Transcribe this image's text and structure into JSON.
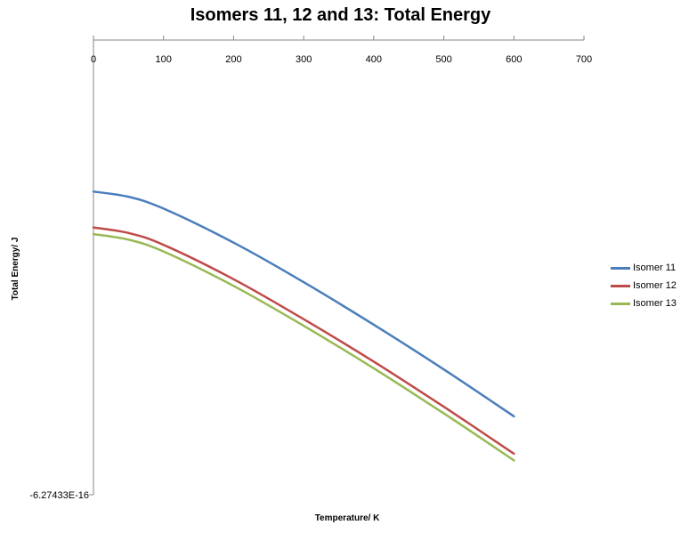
{
  "chart_data": {
    "type": "line",
    "title": "Isomers 11, 12 and 13: Total Energy",
    "xlabel": "Temperature/ K",
    "ylabel": "Total Energy/ J",
    "xlim": [
      0,
      700
    ],
    "x_ticks": [
      0,
      100,
      200,
      300,
      400,
      500,
      600,
      700
    ],
    "y_tick_label": "-6.27433E-16",
    "x_axis_position": "top",
    "grid": false,
    "legend_position": "right",
    "series": [
      {
        "name": "Isomer 11",
        "color": "#4a7ebb",
        "x": [
          0,
          50,
          100,
          200,
          300,
          400,
          500,
          600
        ],
        "y": [
          0.3,
          0.286,
          0.254,
          0.162,
          0.055,
          -0.06,
          -0.181,
          -0.308
        ]
      },
      {
        "name": "Isomer 12",
        "color": "#be4b48",
        "x": [
          0,
          50,
          100,
          200,
          300,
          400,
          500,
          600
        ],
        "y": [
          0.203,
          0.188,
          0.156,
          0.063,
          -0.045,
          -0.16,
          -0.282,
          -0.409
        ]
      },
      {
        "name": "Isomer 13",
        "color": "#98b954",
        "x": [
          0,
          50,
          100,
          200,
          300,
          400,
          500,
          600
        ],
        "y": [
          0.185,
          0.17,
          0.138,
          0.045,
          -0.063,
          -0.178,
          -0.3,
          -0.427
        ]
      }
    ]
  }
}
